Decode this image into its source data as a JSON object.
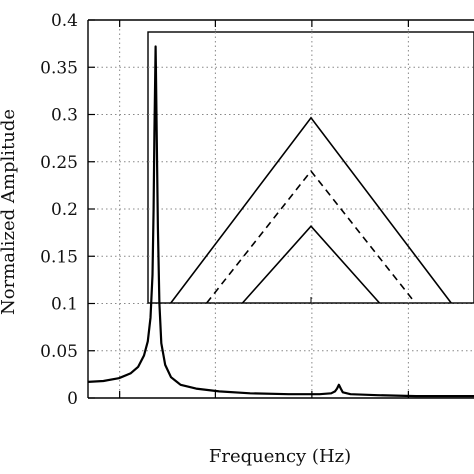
{
  "chart_data": {
    "type": "line",
    "xlabel": "Frequency (Hz)",
    "ylabel": "Normalized Amplitude",
    "ylim": [
      0,
      0.4
    ],
    "y_ticks": [
      0,
      0.05,
      0.1,
      0.15,
      0.2,
      0.25,
      0.3,
      0.35,
      0.4
    ],
    "y_tick_labels": [
      "0",
      "0.05",
      "0.1",
      "0.15",
      "0.2",
      "0.25",
      "0.3",
      "0.35",
      "0.4"
    ],
    "x_tick_labels_visible": false,
    "grid": true,
    "grid_style": "dotted",
    "line_color": "#000000",
    "grid_color": "#888888",
    "series": [
      {
        "values": [
          [
            0.0,
            0.017
          ],
          [
            0.04,
            0.018
          ],
          [
            0.08,
            0.021
          ],
          [
            0.11,
            0.026
          ],
          [
            0.13,
            0.033
          ],
          [
            0.145,
            0.045
          ],
          [
            0.155,
            0.06
          ],
          [
            0.162,
            0.085
          ],
          [
            0.167,
            0.13
          ],
          [
            0.17,
            0.2
          ],
          [
            0.172,
            0.28
          ],
          [
            0.174,
            0.34
          ],
          [
            0.175,
            0.372
          ],
          [
            0.176,
            0.35
          ],
          [
            0.178,
            0.28
          ],
          [
            0.181,
            0.18
          ],
          [
            0.185,
            0.1
          ],
          [
            0.19,
            0.058
          ],
          [
            0.2,
            0.035
          ],
          [
            0.215,
            0.022
          ],
          [
            0.24,
            0.014
          ],
          [
            0.28,
            0.01
          ],
          [
            0.34,
            0.007
          ],
          [
            0.42,
            0.005
          ],
          [
            0.52,
            0.004
          ],
          [
            0.6,
            0.004
          ],
          [
            0.63,
            0.005
          ],
          [
            0.64,
            0.007
          ],
          [
            0.645,
            0.01
          ],
          [
            0.65,
            0.014
          ],
          [
            0.655,
            0.01
          ],
          [
            0.66,
            0.006
          ],
          [
            0.68,
            0.004
          ],
          [
            0.75,
            0.003
          ],
          [
            0.85,
            0.002
          ],
          [
            1.0,
            0.002
          ]
        ]
      }
    ],
    "inset": {
      "ylim": [
        0.1,
        0.4
      ],
      "series": [
        {
          "style": "solid",
          "values": [
            [
              0.07,
              0.1
            ],
            [
              0.5,
              0.305
            ],
            [
              0.93,
              0.1
            ]
          ]
        },
        {
          "style": "dashed",
          "values": [
            [
              0.18,
              0.1
            ],
            [
              0.5,
              0.246
            ],
            [
              0.82,
              0.1
            ]
          ]
        },
        {
          "style": "solid",
          "values": [
            [
              0.29,
              0.1
            ],
            [
              0.5,
              0.185
            ],
            [
              0.71,
              0.1
            ]
          ]
        }
      ]
    }
  }
}
